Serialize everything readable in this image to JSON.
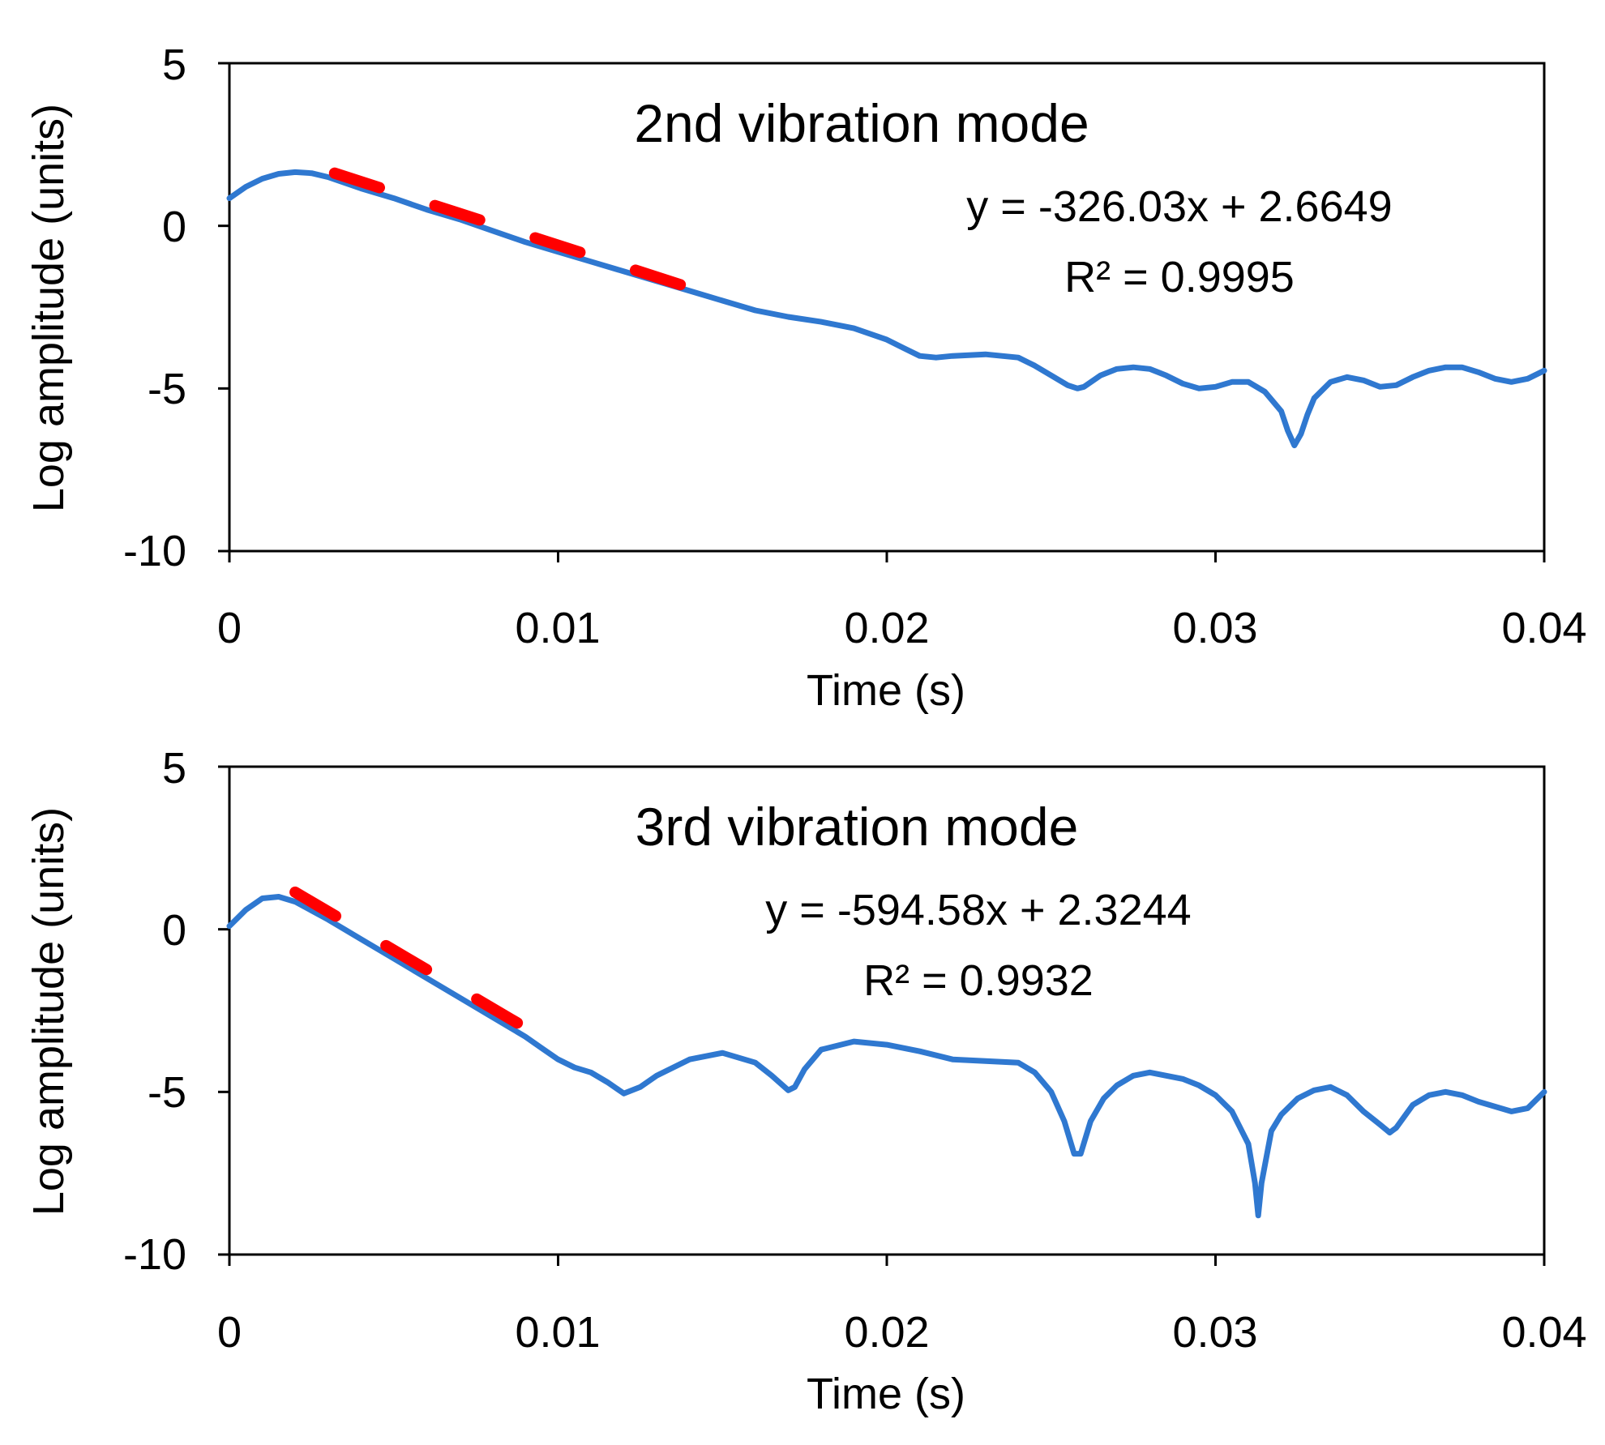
{
  "chart_data": [
    {
      "type": "line",
      "title": "2nd vibration mode",
      "xlabel": "Time (s)",
      "ylabel": "Log amplitude (units)",
      "xlim": [
        0,
        0.04
      ],
      "ylim": [
        -10,
        5
      ],
      "xticks": [
        "0",
        "0.01",
        "0.02",
        "0.03",
        "0.04"
      ],
      "yticks": [
        "5",
        "0",
        "-5",
        "-10"
      ],
      "grid": false,
      "annotations": [
        "y = -326.03x + 2.6649",
        "R² = 0.9995"
      ],
      "series": [
        {
          "style": "solid",
          "color": "#2f78d0",
          "x": [
            0,
            0.0005,
            0.001,
            0.0015,
            0.002,
            0.0025,
            0.003,
            0.004,
            0.005,
            0.006,
            0.007,
            0.008,
            0.009,
            0.01,
            0.011,
            0.012,
            0.013,
            0.014,
            0.015,
            0.016,
            0.017,
            0.018,
            0.019,
            0.02,
            0.0205,
            0.021,
            0.0215,
            0.022,
            0.023,
            0.024,
            0.0245,
            0.025,
            0.0255,
            0.0258,
            0.026,
            0.0265,
            0.027,
            0.0275,
            0.028,
            0.0285,
            0.029,
            0.0295,
            0.03,
            0.0305,
            0.031,
            0.0315,
            0.032,
            0.0322,
            0.0324,
            0.0326,
            0.0328,
            0.033,
            0.0335,
            0.034,
            0.0345,
            0.035,
            0.0355,
            0.036,
            0.0365,
            0.037,
            0.0375,
            0.038,
            0.0385,
            0.039,
            0.0395,
            0.04
          ],
          "y": [
            0.85,
            1.2,
            1.45,
            1.6,
            1.65,
            1.62,
            1.5,
            1.15,
            0.85,
            0.5,
            0.2,
            -0.15,
            -0.5,
            -0.8,
            -1.1,
            -1.4,
            -1.7,
            -2.0,
            -2.3,
            -2.6,
            -2.8,
            -2.95,
            -3.15,
            -3.5,
            -3.75,
            -4.0,
            -4.05,
            -4.0,
            -3.95,
            -4.05,
            -4.3,
            -4.6,
            -4.9,
            -5.0,
            -4.95,
            -4.6,
            -4.4,
            -4.35,
            -4.4,
            -4.6,
            -4.85,
            -5.0,
            -4.95,
            -4.8,
            -4.8,
            -5.1,
            -5.7,
            -6.3,
            -6.75,
            -6.4,
            -5.8,
            -5.3,
            -4.8,
            -4.65,
            -4.75,
            -4.95,
            -4.9,
            -4.65,
            -4.45,
            -4.35,
            -4.35,
            -4.5,
            -4.7,
            -4.8,
            -4.7,
            -4.45
          ]
        },
        {
          "style": "dashed",
          "color": "#ff0000",
          "x": [
            0.0032,
            0.0148
          ],
          "y": [
            1.62,
            -2.16
          ]
        }
      ]
    },
    {
      "type": "line",
      "title": "3rd vibration mode",
      "xlabel": "Time (s)",
      "ylabel": "Log amplitude (units)",
      "xlim": [
        0,
        0.04
      ],
      "ylim": [
        -10,
        5
      ],
      "xticks": [
        "0",
        "0.01",
        "0.02",
        "0.03",
        "0.04"
      ],
      "yticks": [
        "5",
        "0",
        "-5",
        "-10"
      ],
      "grid": false,
      "annotations": [
        "y = -594.58x + 2.3244",
        "R² = 0.9932"
      ],
      "series": [
        {
          "style": "solid",
          "color": "#2f78d0",
          "x": [
            0,
            0.0005,
            0.001,
            0.0015,
            0.002,
            0.003,
            0.004,
            0.005,
            0.006,
            0.007,
            0.008,
            0.009,
            0.0095,
            0.01,
            0.0105,
            0.011,
            0.0115,
            0.012,
            0.0125,
            0.013,
            0.014,
            0.015,
            0.016,
            0.0165,
            0.017,
            0.0172,
            0.0175,
            0.018,
            0.019,
            0.02,
            0.021,
            0.022,
            0.023,
            0.024,
            0.0245,
            0.025,
            0.0254,
            0.0257,
            0.0259,
            0.0262,
            0.0266,
            0.027,
            0.0275,
            0.028,
            0.0285,
            0.029,
            0.0295,
            0.03,
            0.0305,
            0.031,
            0.0312,
            0.0313,
            0.0314,
            0.0317,
            0.032,
            0.0325,
            0.033,
            0.0335,
            0.034,
            0.0345,
            0.035,
            0.0353,
            0.0355,
            0.036,
            0.0365,
            0.037,
            0.0375,
            0.038,
            0.0385,
            0.039,
            0.0395,
            0.04
          ],
          "y": [
            0.1,
            0.6,
            0.95,
            1.0,
            0.85,
            0.3,
            -0.3,
            -0.9,
            -1.5,
            -2.1,
            -2.7,
            -3.3,
            -3.65,
            -4.0,
            -4.25,
            -4.4,
            -4.7,
            -5.05,
            -4.85,
            -4.5,
            -4.0,
            -3.8,
            -4.1,
            -4.5,
            -4.95,
            -4.85,
            -4.3,
            -3.7,
            -3.45,
            -3.55,
            -3.75,
            -4.0,
            -4.05,
            -4.1,
            -4.4,
            -5.0,
            -5.9,
            -6.9,
            -6.9,
            -5.9,
            -5.2,
            -4.8,
            -4.5,
            -4.4,
            -4.5,
            -4.6,
            -4.8,
            -5.1,
            -5.6,
            -6.6,
            -7.8,
            -8.8,
            -7.8,
            -6.2,
            -5.7,
            -5.2,
            -4.95,
            -4.85,
            -5.1,
            -5.6,
            -6.0,
            -6.25,
            -6.1,
            -5.4,
            -5.1,
            -5.0,
            -5.1,
            -5.3,
            -5.45,
            -5.6,
            -5.5,
            -5.0
          ]
        },
        {
          "style": "dashed",
          "color": "#ff0000",
          "x": [
            0.002,
            0.0095
          ],
          "y": [
            1.14,
            -3.32
          ]
        }
      ]
    }
  ]
}
